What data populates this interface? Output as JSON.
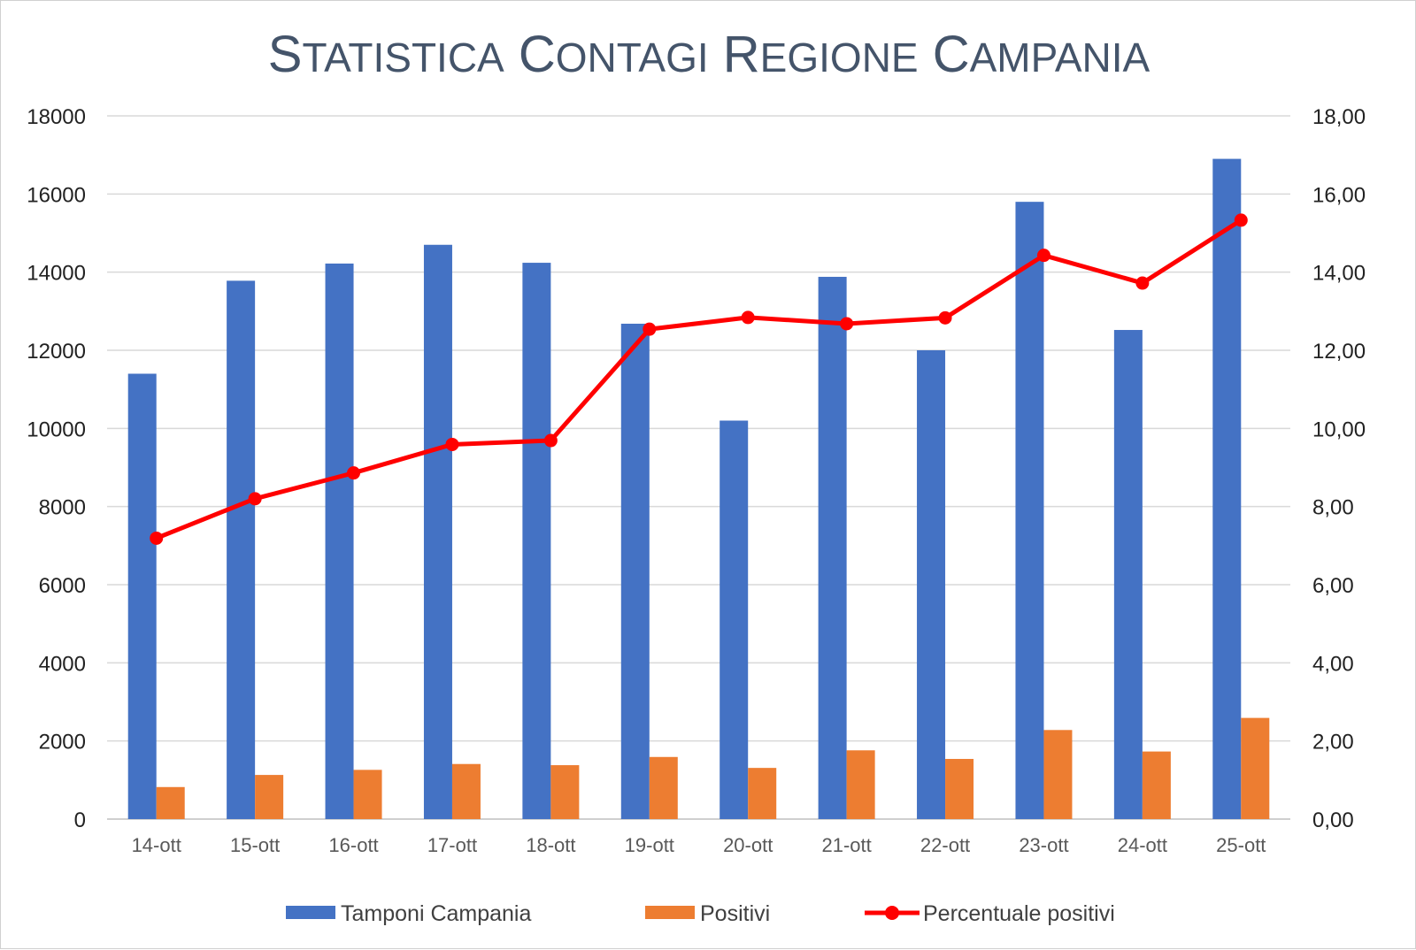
{
  "chart_data": {
    "type": "bar",
    "title": "Statistica Contagi Regione Campania",
    "categories": [
      "14-ott",
      "15-ott",
      "16-ott",
      "17-ott",
      "18-ott",
      "19-ott",
      "20-ott",
      "21-ott",
      "22-ott",
      "23-ott",
      "24-ott",
      "25-ott"
    ],
    "series": [
      {
        "name": "Tamponi Campania",
        "type": "bar",
        "axis": "left",
        "color": "#4472c4",
        "values": [
          11400,
          13780,
          14220,
          14700,
          14240,
          12680,
          10200,
          13880,
          12000,
          15800,
          12520,
          16900
        ]
      },
      {
        "name": "Positivi",
        "type": "bar",
        "axis": "left",
        "color": "#ed7d31",
        "values": [
          820,
          1130,
          1260,
          1410,
          1380,
          1590,
          1310,
          1760,
          1540,
          2280,
          1730,
          2590
        ]
      },
      {
        "name": "Percentuale positivi",
        "type": "line",
        "axis": "right",
        "color": "#ff0000",
        "marker": "circle",
        "values": [
          7.19,
          8.2,
          8.86,
          9.59,
          9.69,
          12.54,
          12.84,
          12.68,
          12.83,
          14.43,
          13.72,
          15.33
        ]
      }
    ],
    "y_left": {
      "ylim": [
        0,
        18000
      ],
      "ticks": [
        "0",
        "2000",
        "4000",
        "6000",
        "8000",
        "10000",
        "12000",
        "14000",
        "16000",
        "18000"
      ]
    },
    "y_right": {
      "ylim": [
        0,
        18
      ],
      "ticks": [
        "0,00",
        "2,00",
        "4,00",
        "6,00",
        "8,00",
        "10,00",
        "12,00",
        "14,00",
        "16,00",
        "18,00"
      ]
    },
    "grid": "horizontal",
    "legend_position": "bottom",
    "xlabel": "",
    "ylabel": ""
  }
}
